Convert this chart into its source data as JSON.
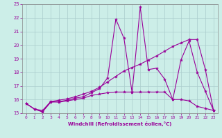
{
  "xlabel": "Windchill (Refroidissement éolien,°C)",
  "xlim": [
    -0.5,
    23.5
  ],
  "ylim": [
    15,
    23
  ],
  "yticks": [
    15,
    16,
    17,
    18,
    19,
    20,
    21,
    22,
    23
  ],
  "xticks": [
    0,
    1,
    2,
    3,
    4,
    5,
    6,
    7,
    8,
    9,
    10,
    11,
    12,
    13,
    14,
    15,
    16,
    17,
    18,
    19,
    20,
    21,
    22,
    23
  ],
  "background_color": "#cceee8",
  "grid_color": "#aacccc",
  "line_color": "#990099",
  "lines": [
    {
      "x": [
        0,
        1,
        2,
        3,
        4,
        5,
        6,
        7,
        8,
        9,
        10,
        11,
        12,
        13,
        14,
        15,
        16,
        17,
        18,
        19,
        20,
        21,
        22,
        23
      ],
      "y": [
        15.7,
        15.3,
        15.1,
        15.8,
        15.85,
        15.95,
        16.1,
        16.2,
        16.5,
        16.8,
        17.6,
        21.9,
        20.5,
        16.5,
        22.8,
        18.2,
        18.3,
        17.5,
        16.0,
        18.9,
        20.3,
        18.0,
        16.6,
        15.2
      ]
    },
    {
      "x": [
        0,
        1,
        2,
        3,
        4,
        5,
        6,
        7,
        8,
        9,
        10,
        11,
        12,
        13,
        14,
        15,
        16,
        17,
        18,
        19,
        20,
        21,
        22,
        23
      ],
      "y": [
        15.7,
        15.3,
        15.2,
        15.85,
        15.95,
        16.05,
        16.2,
        16.4,
        16.6,
        16.9,
        17.3,
        17.7,
        18.1,
        18.35,
        18.6,
        18.9,
        19.2,
        19.55,
        19.9,
        20.15,
        20.4,
        20.4,
        18.2,
        15.2
      ]
    },
    {
      "x": [
        0,
        1,
        2,
        3,
        4,
        5,
        6,
        7,
        8,
        9,
        10,
        11,
        12,
        13,
        14,
        15,
        16,
        17,
        18,
        19,
        20,
        21,
        22,
        23
      ],
      "y": [
        15.7,
        15.3,
        15.1,
        15.85,
        15.8,
        15.9,
        16.0,
        16.1,
        16.3,
        16.4,
        16.5,
        16.55,
        16.55,
        16.55,
        16.55,
        16.55,
        16.55,
        16.55,
        16.0,
        16.0,
        15.9,
        15.5,
        15.35,
        15.2
      ]
    }
  ]
}
